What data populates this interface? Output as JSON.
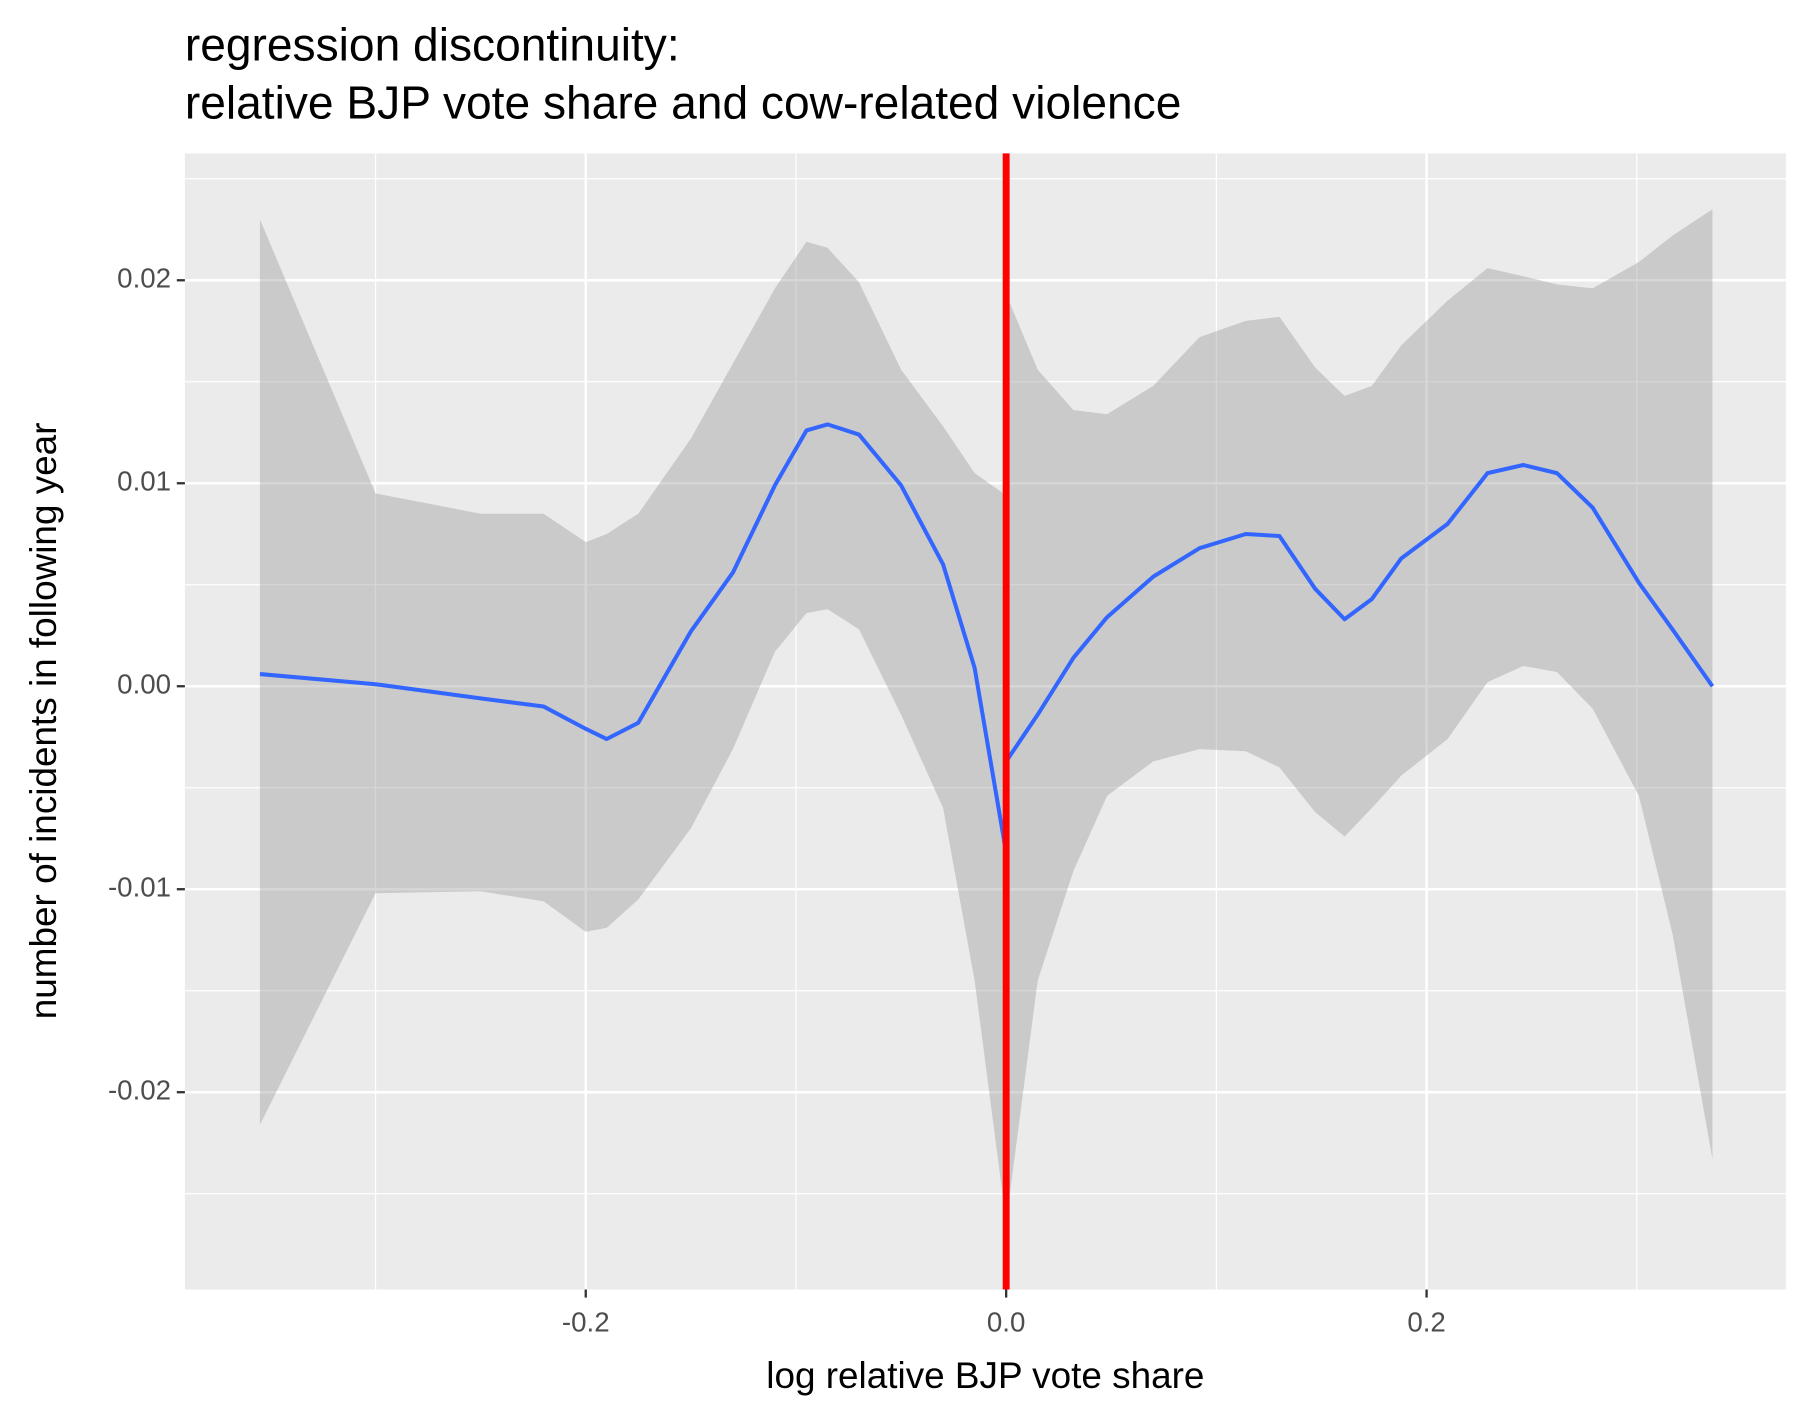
{
  "chart_data": {
    "type": "line",
    "title": [
      "regression discontinuity:",
      "relative BJP vote share and cow-related violence"
    ],
    "x_label": "log relative BJP vote share",
    "y_label": "number of incidents in following year",
    "xlim": [
      -0.3907,
      0.3709
    ],
    "ylim": [
      -0.02972,
      0.02625
    ],
    "xticks": [
      -0.2,
      {
        "value": 0,
        "label": "0.0"
      },
      0.2
    ],
    "yticks": [
      -0.02,
      -0.01,
      {
        "value": 0,
        "label": "0.00"
      },
      0.01,
      0.02
    ],
    "grid": true,
    "band_color": "#999999",
    "series": [
      {
        "color": "#3366ff",
        "x": [
          -0.355,
          -0.3,
          -0.25,
          -0.22,
          -0.2,
          -0.19,
          -0.175,
          -0.15,
          -0.13,
          -0.11,
          -0.095,
          -0.085,
          -0.07,
          -0.05,
          -0.03,
          -0.015,
          0
        ],
        "values": [
          0.0006,
          0.0001,
          -0.0006,
          -0.001,
          -0.0021,
          -0.0026,
          -0.0018,
          0.0027,
          0.0056,
          0.0099,
          0.0126,
          0.0129,
          0.0124,
          0.0099,
          0.006,
          0.0009,
          -0.0082
        ],
        "upper": [
          0.023,
          0.0095,
          0.0085,
          0.0085,
          0.0071,
          0.0075,
          0.0085,
          0.0122,
          0.0159,
          0.0196,
          0.0219,
          0.0216,
          0.0199,
          0.0156,
          0.0128,
          0.0105,
          0.0094
        ],
        "lower": [
          -0.0216,
          -0.0102,
          -0.0101,
          -0.0106,
          -0.0121,
          -0.0119,
          -0.0105,
          -0.007,
          -0.0031,
          0.0017,
          0.0036,
          0.0038,
          0.0028,
          -0.0014,
          -0.006,
          -0.0145,
          -0.0264
        ]
      },
      {
        "color": "#3366ff",
        "x": [
          0,
          0.015,
          0.032,
          0.048,
          0.07,
          0.092,
          0.114,
          0.13,
          0.147,
          0.161,
          0.174,
          0.188,
          0.21,
          0.229,
          0.246,
          0.262,
          0.279,
          0.301,
          0.317,
          0.336
        ],
        "values": [
          -0.0037,
          -0.0014,
          0.0014,
          0.0034,
          0.0054,
          0.0068,
          0.0075,
          0.0074,
          0.0048,
          0.0033,
          0.0043,
          0.0063,
          0.008,
          0.0105,
          0.0109,
          0.0105,
          0.0088,
          0.0051,
          0.0028,
          0.0
        ],
        "upper": [
          0.0193,
          0.0156,
          0.0136,
          0.0134,
          0.0148,
          0.0172,
          0.018,
          0.0182,
          0.0157,
          0.0143,
          0.0148,
          0.0168,
          0.019,
          0.0206,
          0.0202,
          0.0198,
          0.0196,
          0.0209,
          0.0222,
          0.0235
        ],
        "lower": [
          -0.0264,
          -0.0145,
          -0.0091,
          -0.0054,
          -0.0037,
          -0.0031,
          -0.0032,
          -0.004,
          -0.0062,
          -0.0074,
          -0.006,
          -0.0044,
          -0.0026,
          0.0002,
          0.001,
          0.0007,
          -0.0011,
          -0.0054,
          -0.0122,
          -0.0233
        ]
      }
    ],
    "vline": {
      "x": 0,
      "color": "#ff0000"
    }
  }
}
